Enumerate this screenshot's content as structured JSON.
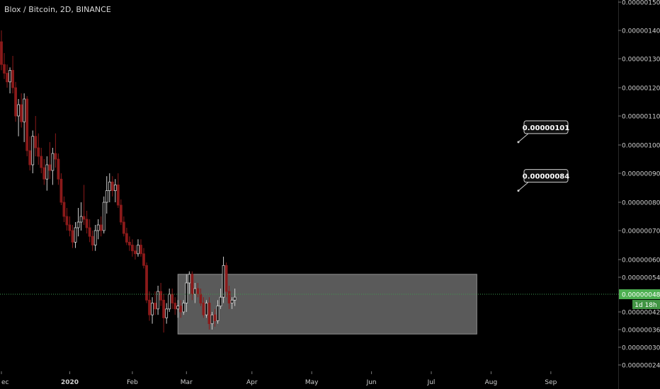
{
  "header": {
    "title": "Blox / Bitcoin, 2D, BINANCE"
  },
  "chart_data": {
    "type": "candlestick",
    "price_scale": {
      "ticks": [
        "0.00000150",
        "0.00000140",
        "0.00000130",
        "0.00000120",
        "0.00000110",
        "0.00000100",
        "0.00000090",
        "0.00000080",
        "0.00000070",
        "0.00000060",
        "0.00000054",
        "0.00000048",
        "0.00000042",
        "0.00000036",
        "0.00000030",
        "0.00000024"
      ],
      "tick_values": [
        150,
        140,
        130,
        120,
        110,
        100,
        90,
        80,
        70,
        60,
        54,
        48,
        42,
        36,
        30,
        24
      ],
      "value_unit": "1e-8 BTC"
    },
    "time_axis": {
      "labels": [
        "ec",
        "2020",
        "Feb",
        "Mar",
        "Apr",
        "May",
        "Jun",
        "Jul",
        "Aug",
        "Sep"
      ],
      "label_index": [
        0,
        24,
        46,
        65,
        88,
        109,
        130,
        151,
        172,
        193
      ],
      "bold_labels": [
        "2020"
      ]
    },
    "current_price": {
      "label": "0.00000048",
      "value": 48,
      "countdown": "1d 18h"
    },
    "callouts": [
      {
        "label": "0.00000101",
        "value": 101
      },
      {
        "label": "0.00000084",
        "value": 84
      }
    ],
    "range_box": {
      "top": 55,
      "bottom": 34.5,
      "start_index": 62,
      "end_index": 167
    },
    "colors": {
      "up": "#cfcfcf",
      "down": "#8b1a1a",
      "range": "#7d7d7d",
      "price_line": "#3e9b4f",
      "price_label": "#4caf50"
    },
    "candles": [
      [
        136,
        140,
        126,
        128
      ],
      [
        128,
        132,
        123,
        125
      ],
      [
        125,
        128,
        120,
        122
      ],
      [
        122,
        127,
        118,
        126
      ],
      [
        126,
        131,
        118,
        120
      ],
      [
        120,
        122,
        108,
        110
      ],
      [
        110,
        116,
        103,
        114
      ],
      [
        114,
        118,
        106,
        108
      ],
      [
        108,
        118,
        101,
        116
      ],
      [
        116,
        117,
        96,
        98
      ],
      [
        98,
        103,
        91,
        93
      ],
      [
        93,
        105,
        90,
        103
      ],
      [
        103,
        110,
        96,
        99
      ],
      [
        99,
        104,
        93,
        96
      ],
      [
        96,
        99,
        90,
        92
      ],
      [
        92,
        95,
        86,
        88
      ],
      [
        88,
        96,
        84,
        93
      ],
      [
        93,
        101,
        88,
        91
      ],
      [
        91,
        99,
        86,
        97
      ],
      [
        97,
        104,
        92,
        95
      ],
      [
        95,
        97,
        86,
        88
      ],
      [
        88,
        90,
        79,
        80
      ],
      [
        80,
        82,
        73,
        75
      ],
      [
        75,
        78,
        70,
        72
      ],
      [
        72,
        75,
        68,
        70
      ],
      [
        70,
        72,
        64,
        66
      ],
      [
        66,
        73,
        64,
        71
      ],
      [
        71,
        78,
        68,
        73
      ],
      [
        73,
        80,
        70,
        75
      ],
      [
        75,
        86,
        72,
        74
      ],
      [
        74,
        77,
        69,
        71
      ],
      [
        71,
        74,
        66,
        68
      ],
      [
        68,
        70,
        63,
        65
      ],
      [
        65,
        72,
        63,
        70
      ],
      [
        70,
        74,
        67,
        72
      ],
      [
        72,
        75,
        68,
        70
      ],
      [
        70,
        82,
        69,
        80
      ],
      [
        80,
        89,
        76,
        84
      ],
      [
        84,
        90,
        80,
        87
      ],
      [
        87,
        89,
        82,
        84
      ],
      [
        84,
        88,
        80,
        86
      ],
      [
        86,
        90,
        78,
        79
      ],
      [
        79,
        81,
        72,
        73
      ],
      [
        73,
        75,
        68,
        69
      ],
      [
        69,
        71,
        65,
        66
      ],
      [
        66,
        68,
        63,
        65
      ],
      [
        65,
        67,
        61,
        63
      ],
      [
        63,
        65,
        60,
        62
      ],
      [
        62,
        67,
        61,
        65
      ],
      [
        65,
        67,
        61,
        62
      ],
      [
        62,
        64,
        57,
        58
      ],
      [
        58,
        59,
        45,
        46
      ],
      [
        46,
        49,
        39,
        41
      ],
      [
        41,
        47,
        38,
        45
      ],
      [
        45,
        49,
        41,
        43
      ],
      [
        43,
        51,
        41,
        49
      ],
      [
        49,
        52,
        44,
        46
      ],
      [
        46,
        48,
        35,
        40
      ],
      [
        40,
        45,
        38,
        43
      ],
      [
        43,
        50,
        42,
        48
      ],
      [
        48,
        50,
        43,
        45
      ],
      [
        45,
        47,
        41,
        43
      ],
      [
        43,
        46,
        40,
        44
      ],
      [
        44,
        46,
        40,
        42
      ],
      [
        42,
        46,
        41,
        45
      ],
      [
        45,
        55,
        42,
        52
      ],
      [
        52,
        56,
        48,
        55
      ],
      [
        55,
        56,
        46,
        48
      ],
      [
        48,
        52,
        45,
        50
      ],
      [
        50,
        52,
        47,
        48
      ],
      [
        48,
        50,
        44,
        45
      ],
      [
        45,
        47,
        40,
        41
      ],
      [
        41,
        46,
        40,
        45
      ],
      [
        45,
        47,
        36,
        38
      ],
      [
        38,
        42,
        36,
        41
      ],
      [
        41,
        43,
        37,
        39
      ],
      [
        39,
        46,
        38,
        44
      ],
      [
        44,
        50,
        43,
        47
      ],
      [
        47,
        61,
        45,
        58
      ],
      [
        58,
        59,
        47,
        49
      ],
      [
        49,
        51,
        43,
        45
      ],
      [
        45,
        47,
        43,
        46
      ],
      [
        46,
        50,
        44,
        47
      ]
    ]
  }
}
